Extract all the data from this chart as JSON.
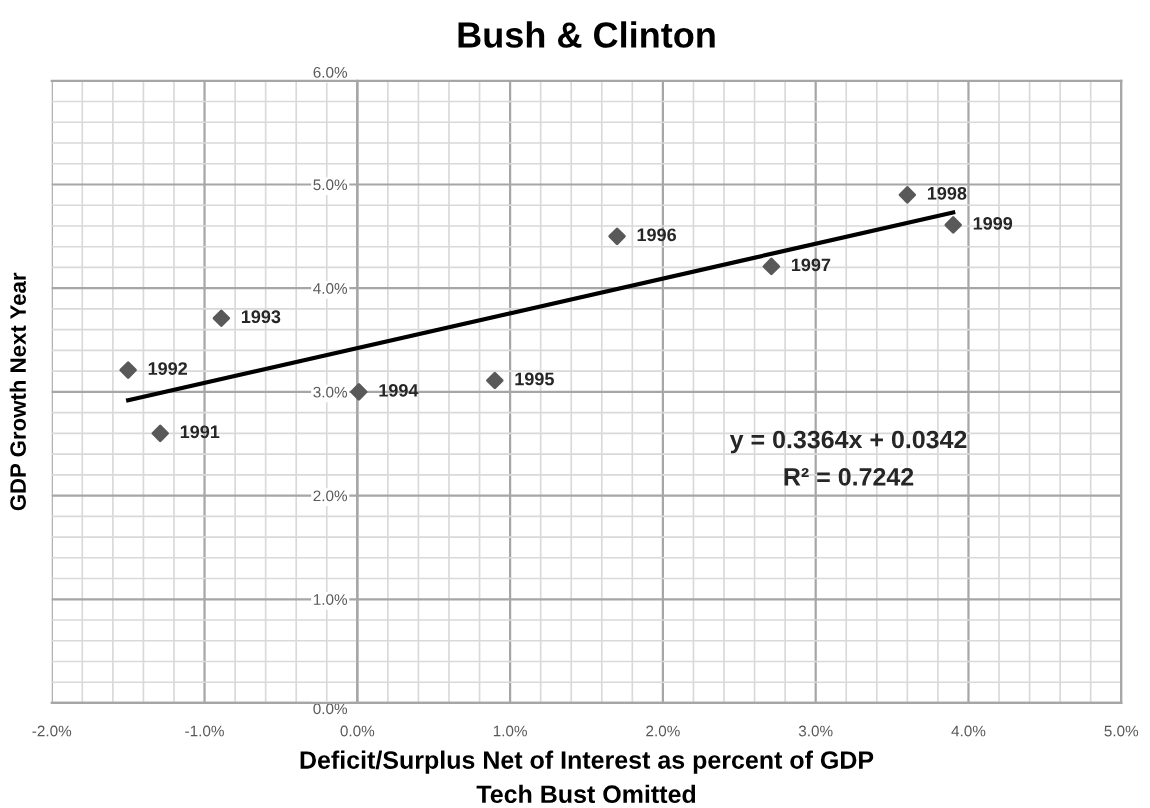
{
  "chart_data": {
    "type": "scatter",
    "title": "Bush & Clinton",
    "xlabel": "Deficit/Surplus Net of Interest as percent of GDP\nTech Bust Omitted",
    "ylabel": "GDP Growth Next Year",
    "x": [
      -1.29,
      -1.5,
      -0.89,
      0.01,
      0.9,
      1.7,
      2.71,
      3.6,
      3.9
    ],
    "series": [
      {
        "color": "#595959",
        "values": [
          2.6,
          3.21,
          3.71,
          3.0,
          3.11,
          4.5,
          4.21,
          4.9,
          4.61
        ],
        "marker": "diamond"
      },
      {
        "type": "line",
        "color": "#000000",
        "x": [
          -1.5,
          3.9
        ],
        "values": [
          2.92,
          4.73
        ],
        "marker": "none",
        "line_style": "solid"
      }
    ],
    "annotations": [
      {
        "text": "1991",
        "x": -1.29,
        "y": 2.6
      },
      {
        "text": "1992",
        "x": -1.5,
        "y": 3.21
      },
      {
        "text": "1993",
        "x": -0.89,
        "y": 3.71
      },
      {
        "text": "1994",
        "x": 0.01,
        "y": 3.0
      },
      {
        "text": "1995",
        "x": 0.9,
        "y": 3.11
      },
      {
        "text": "1996",
        "x": 1.7,
        "y": 4.5
      },
      {
        "text": "1997",
        "x": 2.71,
        "y": 4.21
      },
      {
        "text": "1998",
        "x": 3.6,
        "y": 4.9
      },
      {
        "text": "1999",
        "x": 3.9,
        "y": 4.61
      },
      "y = 0.3364x + 0.0342",
      "R² = 0.7242"
    ],
    "xlim": [
      -2,
      5
    ],
    "ylim": [
      0,
      6
    ],
    "xticks": [
      {
        "value": -2,
        "label": "-2.0%"
      },
      {
        "value": -1,
        "label": "-1.0%"
      },
      {
        "value": 0,
        "label": "0.0%"
      },
      {
        "value": 1,
        "label": "1.0%"
      },
      {
        "value": 2,
        "label": "2.0%"
      },
      {
        "value": 3,
        "label": "3.0%"
      },
      {
        "value": 4,
        "label": "4.0%"
      },
      {
        "value": 5,
        "label": "5.0%"
      }
    ],
    "yticks": [
      {
        "value": 0,
        "label": "0.0%"
      },
      {
        "value": 1,
        "label": "1.0%"
      },
      {
        "value": 2,
        "label": "2.0%"
      },
      {
        "value": 3,
        "label": "3.0%"
      },
      {
        "value": 4,
        "label": "4.0%"
      },
      {
        "value": 5,
        "label": "5.0%"
      },
      {
        "value": 6,
        "label": "6.0%"
      }
    ],
    "grid": true,
    "legend": false
  }
}
